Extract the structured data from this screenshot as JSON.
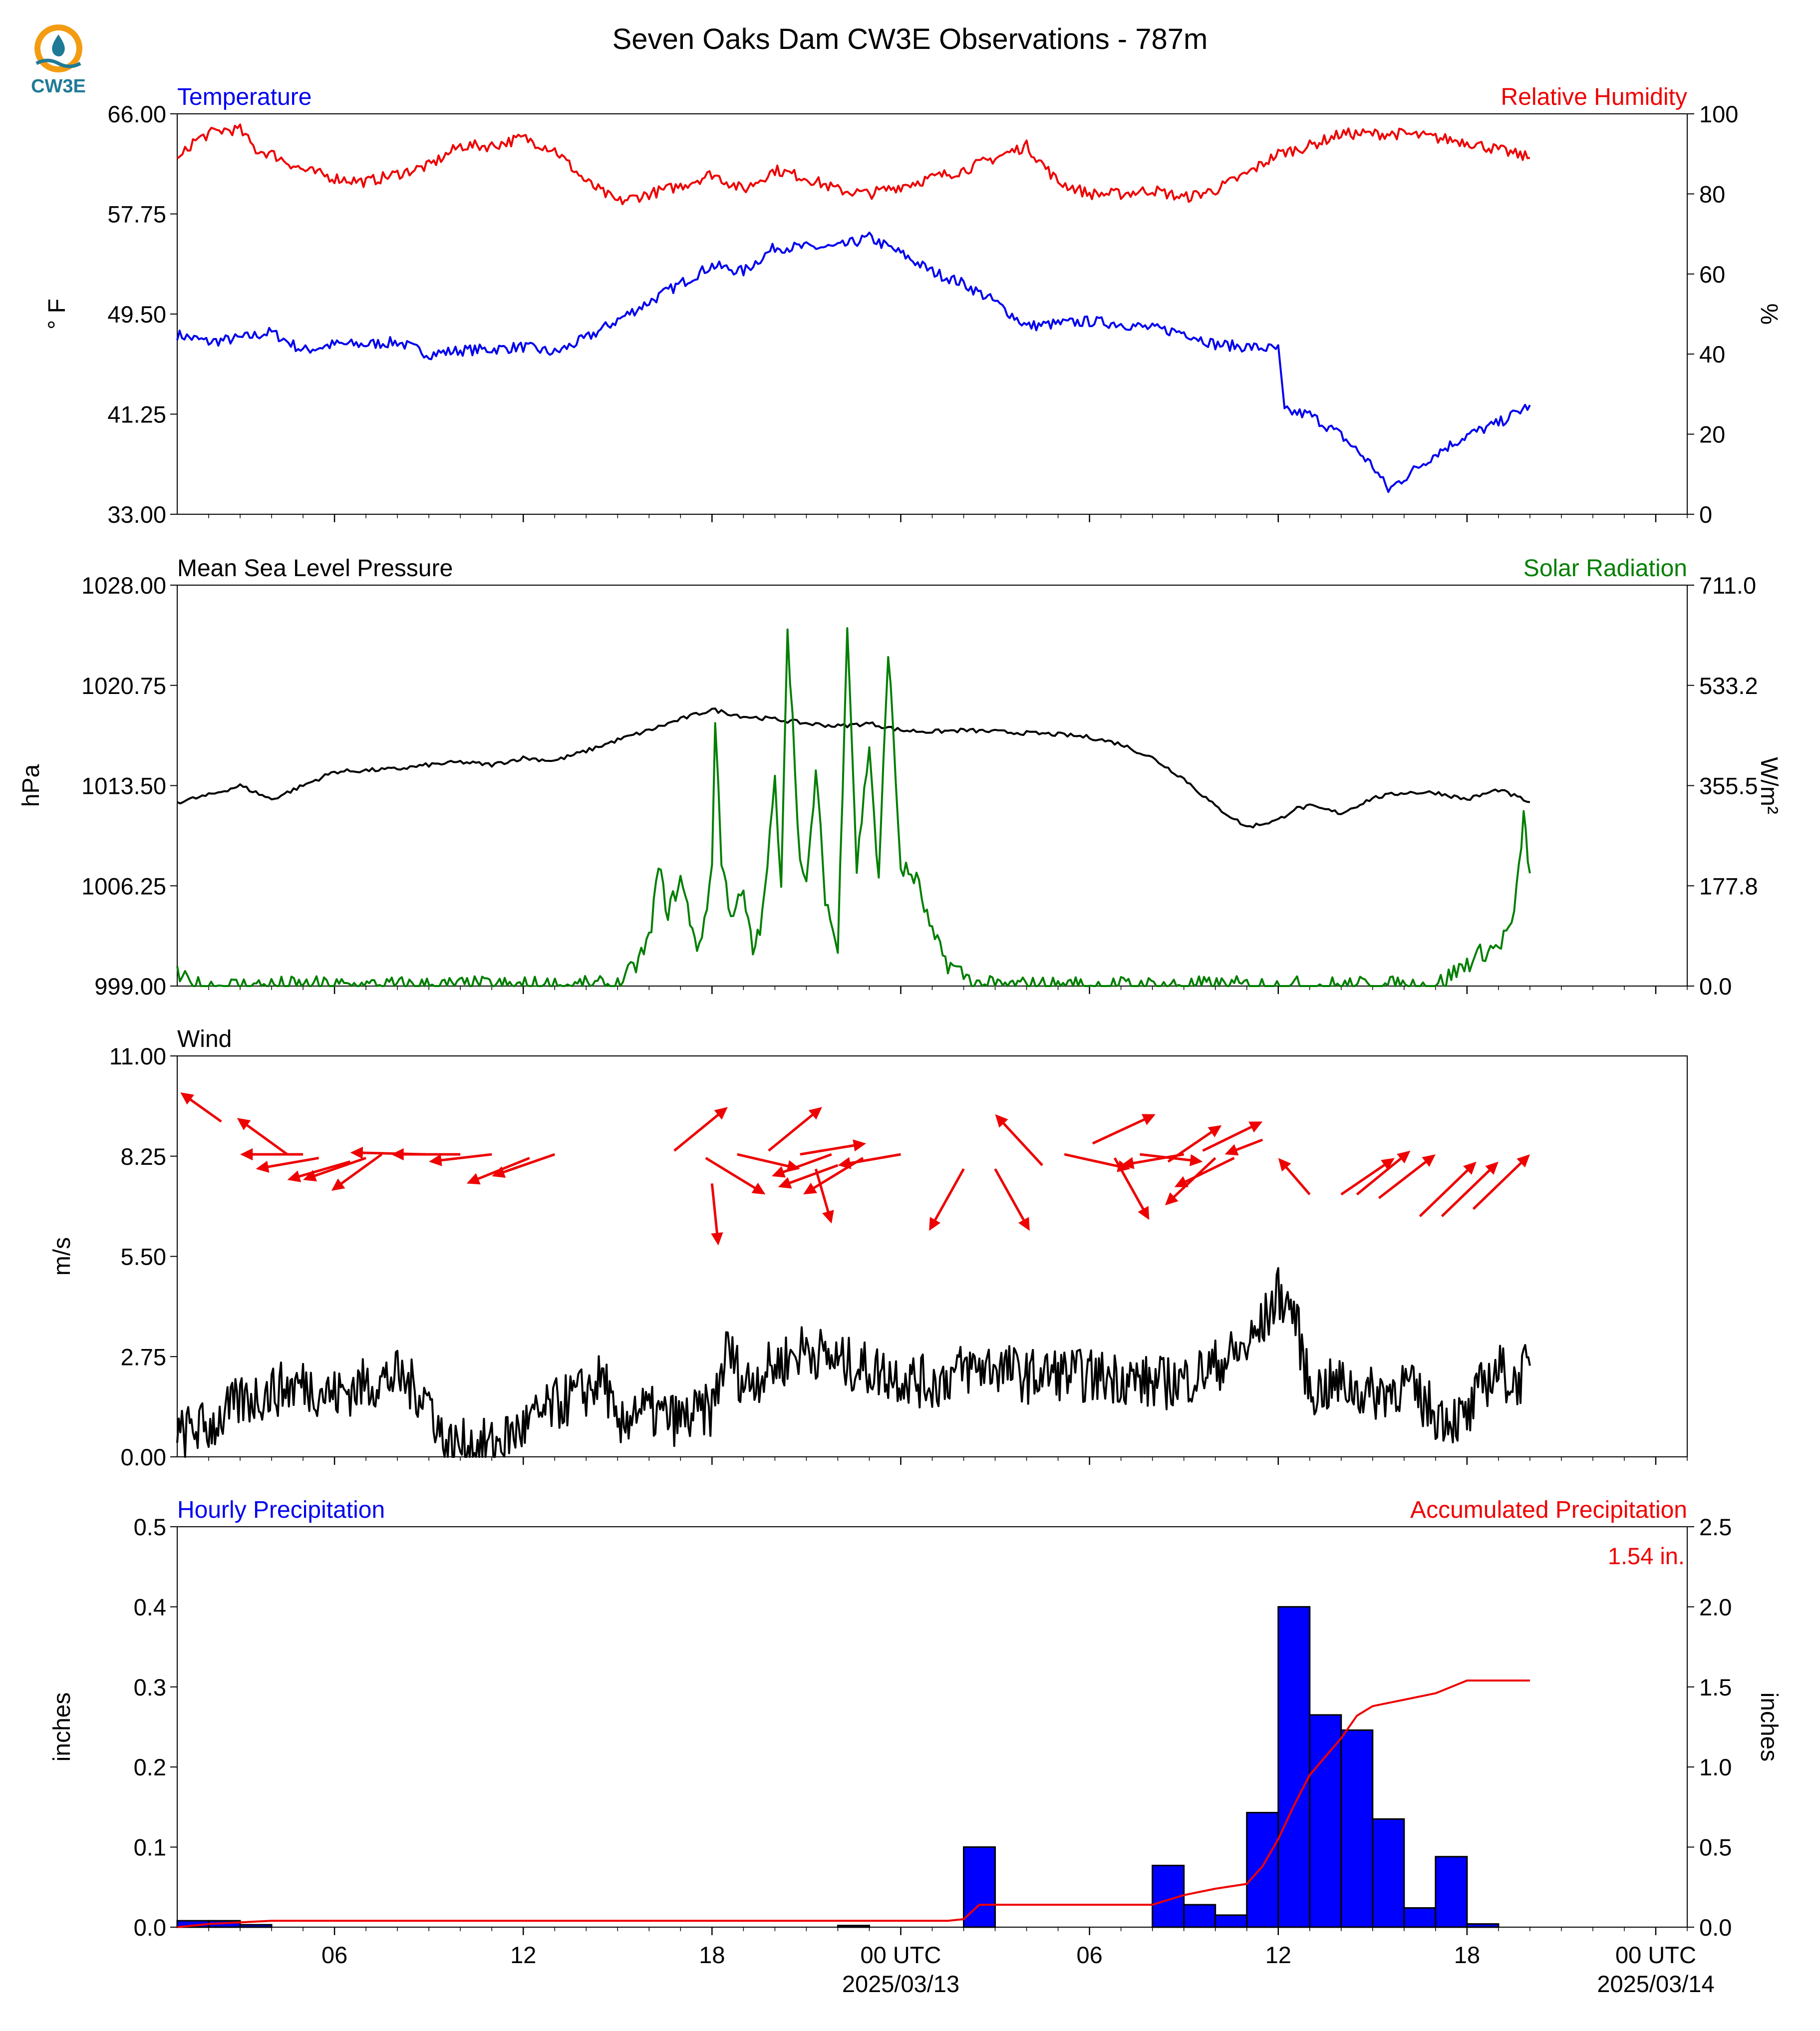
{
  "title": "Seven Oaks Dam CW3E Observations - 787m",
  "logo": {
    "text": "CW3E",
    "icon": "cw3e-water-drop-logo"
  },
  "colors": {
    "blue": "#0000ee",
    "red": "#ee0000",
    "green": "#007f00",
    "black": "#000000",
    "bar_fill": "#0000ff",
    "logo_orange": "#f39c12",
    "logo_teal": "#1f7a96"
  },
  "x_axis": {
    "unit": "hours since 2025/03/12 00 UTC",
    "range": [
      1,
      49
    ],
    "major_ticks": [
      {
        "x": 6,
        "label": "06"
      },
      {
        "x": 12,
        "label": "12"
      },
      {
        "x": 18,
        "label": "18"
      },
      {
        "x": 24,
        "label": "00 UTC"
      },
      {
        "x": 30,
        "label": "06"
      },
      {
        "x": 36,
        "label": "12"
      },
      {
        "x": 42,
        "label": "18"
      },
      {
        "x": 48,
        "label": "00 UTC"
      }
    ],
    "date_labels": [
      {
        "x": 24,
        "label": "2025/03/13"
      },
      {
        "x": 48,
        "label": "2025/03/14"
      }
    ]
  },
  "chart_data": [
    {
      "type": "line",
      "left_title": "Temperature",
      "right_title": "Relative Humidity",
      "ylabel_left": "° F",
      "ylabel_right": "%",
      "ylim_left": [
        33,
        66
      ],
      "ylim_right": [
        0,
        100
      ],
      "yticks_left": [
        "33.00",
        "41.25",
        "49.50",
        "57.75",
        "66.00"
      ],
      "yticks_right": [
        "0",
        "20",
        "40",
        "60",
        "80",
        "100"
      ],
      "series": [
        {
          "axis": "left",
          "color": "blue",
          "x": [
            1,
            2,
            3,
            4,
            5,
            6,
            7,
            8,
            9,
            10,
            11,
            12,
            13,
            14,
            15,
            16,
            17,
            18,
            19,
            20,
            21,
            22,
            23,
            24,
            25,
            26,
            27,
            28,
            29,
            30,
            31,
            32,
            33,
            34,
            35,
            36,
            36.2,
            37,
            38,
            39,
            39.5,
            40,
            41,
            42,
            43,
            44
          ],
          "y": [
            47.8,
            47.2,
            47.5,
            48,
            46.5,
            47,
            47,
            47.2,
            46.2,
            46.5,
            46.6,
            46.8,
            46.3,
            47.5,
            49,
            50.5,
            52,
            53.5,
            53,
            55,
            55,
            55,
            55.8,
            54.5,
            53,
            52,
            50.5,
            48.5,
            48.7,
            48.9,
            48.7,
            48.3,
            48,
            47,
            46.8,
            46.6,
            41.5,
            41.2,
            39.5,
            37,
            35,
            36,
            38,
            39.5,
            40.5,
            42
          ]
        },
        {
          "axis": "right",
          "color": "red",
          "x": [
            1,
            1.5,
            2,
            2.5,
            3,
            3.5,
            4,
            5,
            6,
            7,
            8,
            9,
            10,
            11,
            12,
            13,
            14,
            15,
            16,
            17,
            18,
            19,
            20,
            21,
            22,
            23,
            24,
            25,
            26,
            27,
            28,
            29,
            30,
            31,
            32,
            33,
            34,
            35,
            36,
            37,
            38,
            39,
            40,
            41,
            42,
            43,
            44
          ],
          "y": [
            88,
            93,
            95,
            96,
            96,
            91,
            90,
            86,
            84,
            83,
            85,
            87,
            92,
            92,
            94,
            91,
            83,
            78,
            80,
            82,
            85,
            81,
            86,
            84,
            81,
            80,
            82,
            84,
            86,
            89,
            92,
            83,
            80,
            80,
            81,
            79,
            81,
            85,
            90,
            92,
            95,
            95,
            95,
            94,
            93,
            91,
            89
          ]
        }
      ]
    },
    {
      "type": "line",
      "left_title": "Mean Sea Level Pressure",
      "right_title": "Solar Radiation",
      "ylabel_left": "hPa",
      "ylabel_right": "W/m²",
      "ylim_left": [
        999,
        1028
      ],
      "ylim_right": [
        0,
        711
      ],
      "yticks_left": [
        "999.00",
        "1006.25",
        "1013.50",
        "1020.75",
        "1028.00"
      ],
      "yticks_right": [
        "0.0",
        "177.8",
        "355.5",
        "533.2",
        "711.0"
      ],
      "series": [
        {
          "axis": "left",
          "color": "black",
          "x": [
            1,
            2,
            3,
            4,
            5,
            6,
            7,
            8,
            9,
            10,
            11,
            12,
            13,
            14,
            15,
            16,
            17,
            18,
            19,
            20,
            21,
            22,
            23,
            24,
            25,
            26,
            27,
            28,
            29,
            30,
            31,
            32,
            33,
            34,
            35,
            36,
            36.5,
            37,
            38,
            39,
            40,
            41,
            42,
            43,
            44
          ],
          "y": [
            1012.3,
            1012.8,
            1013.5,
            1012.5,
            1013.5,
            1014.5,
            1014.6,
            1014.7,
            1015,
            1015.2,
            1015,
            1015.5,
            1015.3,
            1016,
            1016.8,
            1017.5,
            1018.3,
            1019,
            1018.5,
            1018.3,
            1018,
            1017.8,
            1018,
            1017.5,
            1017.4,
            1017.5,
            1017.4,
            1017.3,
            1017.2,
            1017,
            1016.5,
            1015.5,
            1014,
            1012,
            1010.5,
            1011,
            1011.8,
            1012,
            1011.5,
            1012.6,
            1013,
            1013,
            1012.5,
            1013.2,
            1012.3
          ]
        },
        {
          "axis": "right",
          "color": "green",
          "x": [
            1,
            1.5,
            2,
            15,
            15.5,
            16,
            16.3,
            16.6,
            17,
            17.3,
            17.6,
            18,
            18.1,
            18.3,
            18.6,
            19,
            19.3,
            19.6,
            20,
            20.2,
            20.4,
            20.8,
            21,
            21.3,
            21.6,
            22,
            22.3,
            22.6,
            23,
            23.3,
            23.6,
            24,
            24.5,
            25,
            25.5,
            26,
            26.5,
            27,
            41,
            41.5,
            42,
            42.5,
            43,
            43.5,
            43.8,
            44
          ],
          "y": [
            18,
            0,
            0,
            0,
            30,
            80,
            210,
            130,
            190,
            120,
            60,
            210,
            480,
            220,
            130,
            160,
            60,
            120,
            360,
            190,
            640,
            220,
            170,
            380,
            160,
            60,
            650,
            210,
            430,
            180,
            600,
            210,
            190,
            90,
            40,
            20,
            0,
            0,
            0,
            20,
            40,
            60,
            70,
            120,
            300,
            200
          ]
        }
      ]
    },
    {
      "type": "line",
      "left_title": "Wind",
      "ylabel_left": "m/s",
      "ylim_left": [
        0,
        11
      ],
      "yticks_left": [
        "0.00",
        "2.75",
        "5.50",
        "8.25",
        "11.00"
      ],
      "series": [
        {
          "axis": "left",
          "color": "black",
          "x": [
            1,
            1.5,
            2,
            3,
            4,
            5,
            6,
            7,
            8,
            9,
            9.5,
            10,
            11,
            12,
            13,
            14,
            14.6,
            15,
            15.5,
            16,
            17,
            18,
            18.5,
            19,
            20,
            21,
            22,
            23,
            24,
            25,
            26,
            27,
            28,
            29,
            30,
            31,
            32,
            33,
            34,
            35,
            35.5,
            36,
            36.5,
            37,
            38,
            39,
            40,
            41,
            42,
            42.5,
            43,
            43.5,
            44
          ],
          "y": [
            0.5,
            0.8,
            0.8,
            1.5,
            1.8,
            2.0,
            1.7,
            2.0,
            2.2,
            1.6,
            0.3,
            0.3,
            0.3,
            0.8,
            1.4,
            1.8,
            2.2,
            0.5,
            1.4,
            1.2,
            1.0,
            1.3,
            3.0,
            2.0,
            2.5,
            3.0,
            2.6,
            2.4,
            2.2,
            2.0,
            2.4,
            2.5,
            2.2,
            2.3,
            2.2,
            2.2,
            2.0,
            2.1,
            2.5,
            3.0,
            3.6,
            4.5,
            4.0,
            1.8,
            2.0,
            1.7,
            2.0,
            1.2,
            1.0,
            2.0,
            2.4,
            2.0,
            2.5
          ]
        }
      ],
      "wind_arrows": {
        "color": "red",
        "note": "direction vectors as dx, dy in data units (hours, m/s) from tail to head",
        "vectors": [
          {
            "x": 2.4,
            "y": 9.2,
            "dx": -1.3,
            "dy": 0.8
          },
          {
            "x": 4.5,
            "y": 8.3,
            "dx": -1.6,
            "dy": 1.0
          },
          {
            "x": 5.0,
            "y": 8.3,
            "dx": -2.0,
            "dy": 0.0
          },
          {
            "x": 5.5,
            "y": 8.2,
            "dx": -2.0,
            "dy": -0.3
          },
          {
            "x": 6.5,
            "y": 8.1,
            "dx": -2.0,
            "dy": -0.5
          },
          {
            "x": 7.0,
            "y": 8.2,
            "dx": -2.0,
            "dy": -0.6
          },
          {
            "x": 7.5,
            "y": 8.3,
            "dx": -1.6,
            "dy": -1.0
          },
          {
            "x": 8.9,
            "y": 8.3,
            "dx": -2.4,
            "dy": 0.05
          },
          {
            "x": 10.0,
            "y": 8.3,
            "dx": -2.2,
            "dy": 0.0
          },
          {
            "x": 11.0,
            "y": 8.3,
            "dx": -2.0,
            "dy": -0.2
          },
          {
            "x": 12.2,
            "y": 8.2,
            "dx": -2.0,
            "dy": -0.7
          },
          {
            "x": 13.0,
            "y": 8.3,
            "dx": -2.0,
            "dy": -0.6
          },
          {
            "x": 16.8,
            "y": 8.4,
            "dx": 1.7,
            "dy": 1.2
          },
          {
            "x": 17.8,
            "y": 8.2,
            "dx": 1.9,
            "dy": -1.0
          },
          {
            "x": 18.0,
            "y": 7.5,
            "dx": 0.2,
            "dy": -1.7
          },
          {
            "x": 18.8,
            "y": 8.3,
            "dx": 2.0,
            "dy": -0.4
          },
          {
            "x": 19.8,
            "y": 8.4,
            "dx": 1.7,
            "dy": 1.2
          },
          {
            "x": 20.8,
            "y": 8.3,
            "dx": 2.1,
            "dy": 0.3
          },
          {
            "x": 21.3,
            "y": 7.9,
            "dx": 0.5,
            "dy": -1.5
          },
          {
            "x": 21.8,
            "y": 8.3,
            "dx": -1.9,
            "dy": -0.6
          },
          {
            "x": 22.0,
            "y": 8.0,
            "dx": -1.9,
            "dy": -0.6
          },
          {
            "x": 22.8,
            "y": 8.2,
            "dx": -1.9,
            "dy": -1.0
          },
          {
            "x": 24.0,
            "y": 8.3,
            "dx": -2.0,
            "dy": -0.3
          },
          {
            "x": 26.0,
            "y": 7.9,
            "dx": -1.1,
            "dy": -1.7
          },
          {
            "x": 27.0,
            "y": 7.9,
            "dx": 1.1,
            "dy": -1.7
          },
          {
            "x": 28.5,
            "y": 8.0,
            "dx": -1.5,
            "dy": 1.4
          },
          {
            "x": 29.2,
            "y": 8.3,
            "dx": 2.1,
            "dy": -0.4
          },
          {
            "x": 30.1,
            "y": 8.6,
            "dx": 2.0,
            "dy": 0.8
          },
          {
            "x": 30.8,
            "y": 8.2,
            "dx": 1.1,
            "dy": -1.7
          },
          {
            "x": 31.6,
            "y": 8.3,
            "dx": 2.0,
            "dy": -0.2
          },
          {
            "x": 32.5,
            "y": 8.1,
            "dx": 1.7,
            "dy": 1.0
          },
          {
            "x": 33.0,
            "y": 8.3,
            "dx": -2.0,
            "dy": -0.3
          },
          {
            "x": 33.6,
            "y": 8.4,
            "dx": 1.9,
            "dy": 0.8
          },
          {
            "x": 34.0,
            "y": 8.2,
            "dx": -1.6,
            "dy": -1.3
          },
          {
            "x": 34.6,
            "y": 8.2,
            "dx": -1.9,
            "dy": -0.8
          },
          {
            "x": 35.5,
            "y": 8.7,
            "dx": -1.2,
            "dy": -0.4
          },
          {
            "x": 37.0,
            "y": 7.2,
            "dx": -1.0,
            "dy": 1.0
          },
          {
            "x": 38.0,
            "y": 7.2,
            "dx": 1.7,
            "dy": 1.0
          },
          {
            "x": 38.5,
            "y": 7.2,
            "dx": 1.7,
            "dy": 1.2
          },
          {
            "x": 39.2,
            "y": 7.1,
            "dx": 1.8,
            "dy": 1.2
          },
          {
            "x": 40.5,
            "y": 6.6,
            "dx": 1.8,
            "dy": 1.5
          },
          {
            "x": 41.2,
            "y": 6.6,
            "dx": 1.8,
            "dy": 1.5
          },
          {
            "x": 42.2,
            "y": 6.8,
            "dx": 1.8,
            "dy": 1.5
          }
        ]
      }
    },
    {
      "type": "bar",
      "left_title": "Hourly Precipitation",
      "right_title": "Accumulated Precipitation",
      "ylabel_left": "inches",
      "ylabel_right": "inches",
      "ylim_left": [
        0,
        0.5
      ],
      "ylim_right": [
        0,
        2.5
      ],
      "yticks_left": [
        "0.0",
        "0.1",
        "0.2",
        "0.3",
        "0.4",
        "0.5"
      ],
      "yticks_right": [
        "0.0",
        "0.5",
        "1.0",
        "1.5",
        "2.0",
        "2.5"
      ],
      "total_label": "1.54 in.",
      "bars": {
        "color": "bar_fill",
        "x": [
          1,
          2,
          3,
          22,
          26,
          32,
          33,
          34,
          35,
          36,
          37,
          38,
          39,
          40,
          41,
          42,
          43
        ],
        "values": [
          0.008,
          0.008,
          0.003,
          0.002,
          0.1,
          0.077,
          0.028,
          0.015,
          0.143,
          0.4,
          0.265,
          0.246,
          0.135,
          0.024,
          0.088,
          0.004,
          0.0
        ]
      },
      "series": [
        {
          "axis": "right",
          "color": "red",
          "name": "Accumulated Precipitation",
          "x": [
            1,
            2,
            3,
            4,
            21,
            22,
            25.5,
            26,
            26.5,
            27,
            31,
            32,
            33,
            34,
            35,
            35.5,
            36,
            36.5,
            37,
            38,
            38.5,
            39,
            40,
            41,
            41.5,
            42,
            42.5,
            43,
            44
          ],
          "y": [
            0.0,
            0.02,
            0.03,
            0.04,
            0.04,
            0.04,
            0.04,
            0.05,
            0.14,
            0.14,
            0.14,
            0.14,
            0.2,
            0.24,
            0.27,
            0.38,
            0.55,
            0.76,
            0.95,
            1.18,
            1.32,
            1.38,
            1.42,
            1.46,
            1.5,
            1.54,
            1.54,
            1.54,
            1.54
          ]
        }
      ]
    }
  ]
}
